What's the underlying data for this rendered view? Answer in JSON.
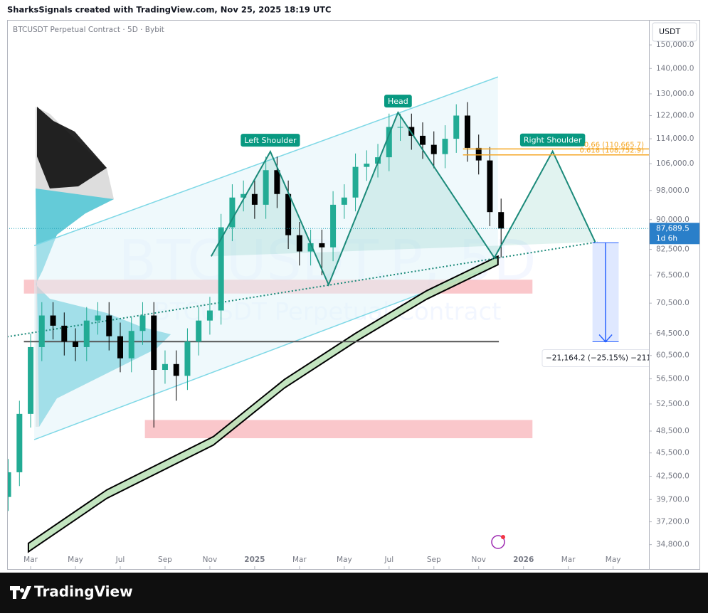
{
  "header": {
    "attribution": "SharksSignals created with TradingView.com, Nov 25, 2025 18:19 UTC"
  },
  "footer": {
    "brand": "TradingView"
  },
  "chart_data": {
    "type": "candlestick",
    "title": "BTCUSDT Perpetual Contract · 5D · Bybit",
    "watermark": "BTCUSDT.P, 5D",
    "watermark_subtitle": "BTCUSDT Perpetual Contract",
    "currency": "USDT",
    "log_scale": true,
    "grid": false,
    "up_color": "#22ab94",
    "down_color": "#000000",
    "x": [
      -1,
      -0.5,
      0,
      0.5,
      1,
      1.5,
      2,
      2.5,
      3,
      3.5,
      4,
      4.5,
      5,
      5.5,
      6,
      6.5,
      7,
      7.5,
      8,
      8.5,
      9,
      9.5,
      10,
      10.5,
      11,
      11.5,
      12,
      12.5,
      13,
      13.5,
      14,
      14.5,
      15,
      15.5,
      16,
      16.5,
      17,
      17.5,
      18,
      18.5,
      19,
      19.5,
      20,
      20.5,
      21
    ],
    "open": [
      40000,
      43000,
      51000,
      62000,
      68000,
      66000,
      63000,
      62000,
      67000,
      68000,
      64000,
      60000,
      65000,
      68000,
      58000,
      59000,
      57000,
      63000,
      67000,
      69000,
      88000,
      96000,
      97000,
      94000,
      104000,
      97000,
      86000,
      82000,
      84000,
      83000,
      94000,
      96000,
      105000,
      106000,
      108000,
      118000,
      118000,
      115000,
      112000,
      109000,
      114000,
      122000,
      111000,
      107000,
      92000
    ],
    "high": [
      44700,
      53000,
      64500,
      70700,
      70700,
      68600,
      65500,
      69700,
      70700,
      70700,
      66600,
      67600,
      70700,
      70700,
      61400,
      61400,
      65500,
      69700,
      71800,
      91500,
      99800,
      100900,
      100900,
      108200,
      108200,
      100900,
      89400,
      87400,
      87400,
      97800,
      99800,
      109200,
      110200,
      112300,
      122700,
      122700,
      122700,
      119600,
      116500,
      118600,
      126100,
      126900,
      115400,
      111300,
      95700
    ],
    "low": [
      38400,
      41300,
      49000,
      59500,
      63400,
      60500,
      59500,
      59500,
      64300,
      61400,
      57600,
      57600,
      62400,
      49000,
      55700,
      53000,
      54700,
      60500,
      64300,
      66200,
      84500,
      92200,
      90200,
      90200,
      93100,
      82600,
      78700,
      78700,
      76500,
      79700,
      90200,
      92200,
      100800,
      101800,
      103700,
      113300,
      110400,
      107500,
      104600,
      104600,
      109400,
      106600,
      102700,
      88300,
      80600
    ],
    "close": [
      43000,
      51000,
      62000,
      68000,
      66000,
      63000,
      62000,
      67000,
      68000,
      64000,
      60000,
      65000,
      68000,
      58000,
      59000,
      57000,
      63000,
      67000,
      69000,
      88000,
      96000,
      97000,
      94000,
      104000,
      97000,
      86000,
      82000,
      84000,
      83000,
      94000,
      96000,
      105000,
      106000,
      108000,
      118000,
      118000,
      115000,
      112000,
      109000,
      114000,
      122000,
      111000,
      107000,
      92000,
      87689.5
    ],
    "xlim": [
      -1.05,
      27.6
    ],
    "xticks": [
      {
        "value": 0,
        "label": "Mar"
      },
      {
        "value": 2,
        "label": "May"
      },
      {
        "value": 4,
        "label": "Jul"
      },
      {
        "value": 6,
        "label": "Sep"
      },
      {
        "value": 8,
        "label": "Nov"
      },
      {
        "value": 10,
        "label": "2025"
      },
      {
        "value": 12,
        "label": "Mar"
      },
      {
        "value": 14,
        "label": "May"
      },
      {
        "value": 16,
        "label": "Jul"
      },
      {
        "value": 18,
        "label": "Sep"
      },
      {
        "value": 20,
        "label": "Nov"
      },
      {
        "value": 22,
        "label": "2026"
      },
      {
        "value": 24,
        "label": "Mar"
      },
      {
        "value": 26,
        "label": "May"
      }
    ],
    "ylim": [
      32400,
      160700
    ],
    "yticks": [
      {
        "value": 34800,
        "label": "34,800.0"
      },
      {
        "value": 37200,
        "label": "37,200.0"
      },
      {
        "value": 39700,
        "label": "39,700.0"
      },
      {
        "value": 42500,
        "label": "42,500.0"
      },
      {
        "value": 45500,
        "label": "45,500.0"
      },
      {
        "value": 48500,
        "label": "48,500.0"
      },
      {
        "value": 52500,
        "label": "52,500.0"
      },
      {
        "value": 56500,
        "label": "56,500.0"
      },
      {
        "value": 60500,
        "label": "60,500.0"
      },
      {
        "value": 64500,
        "label": "64,500.0"
      },
      {
        "value": 70500,
        "label": "70,500.0"
      },
      {
        "value": 76500,
        "label": "76,500.0"
      },
      {
        "value": 82500,
        "label": "82,500.0"
      },
      {
        "value": 90000,
        "label": "90,000.0"
      },
      {
        "value": 98000,
        "label": "98,000.0"
      },
      {
        "value": 106000,
        "label": "106,000.0"
      },
      {
        "value": 114000,
        "label": "114,000.0"
      },
      {
        "value": 122000,
        "label": "122,000.0"
      },
      {
        "value": 130000,
        "label": "130,000.0"
      },
      {
        "value": 140000,
        "label": "140,000.0"
      },
      {
        "value": 150000,
        "label": "150,000.0"
      }
    ],
    "last_price": {
      "value": 87689.5,
      "label": "87,689.5",
      "countdown": "1d 6h"
    },
    "pattern": {
      "x": [
        8.06,
        10.7,
        13.3,
        16.4,
        20.7,
        23.3,
        25.2
      ],
      "y": [
        80840,
        109800,
        74400,
        123100,
        80500,
        109900,
        84300
      ],
      "labels": [
        {
          "point": 1,
          "text": "Left Shoulder"
        },
        {
          "point": 3,
          "text": "Head"
        },
        {
          "point": 5,
          "text": "Right Shoulder"
        }
      ]
    },
    "fib": [
      {
        "value": 110665.7,
        "label": "0.66 (110,665.7)"
      },
      {
        "value": 108752.9,
        "label": "0.618 (108,752.9)"
      }
    ],
    "fib_x": [
      19.3,
      27.6
    ],
    "zones": [
      {
        "x": [
          -0.3,
          22.4
        ],
        "y": [
          72500,
          75500
        ]
      },
      {
        "x": [
          5.1,
          22.4
        ],
        "y": [
          47500,
          50100
        ]
      }
    ],
    "support": {
      "x": [
        -0.3,
        20.9
      ],
      "y": 63000
    },
    "channel": {
      "x": [
        0.16,
        20.86
      ],
      "upper": [
        83400,
        136600
      ],
      "lower": [
        47300,
        78900
      ]
    },
    "neckline": {
      "x": [
        -1.05,
        25.3
      ],
      "y": [
        63900,
        84300
      ]
    },
    "ma_band": {
      "x": [
        -0.1,
        3.4,
        8.16,
        11.33,
        14.5,
        17.68,
        20.86
      ],
      "upper": [
        34930,
        40840,
        47720,
        56400,
        64540,
        73110,
        80850
      ],
      "lower": [
        34080,
        39840,
        46560,
        55020,
        62970,
        71330,
        78880
      ]
    },
    "measure": {
      "x": [
        25.08,
        26.25
      ],
      "from": 84130,
      "change": -21164.2,
      "label": "−21,164.2 (−25.15%) −211,"
    }
  }
}
